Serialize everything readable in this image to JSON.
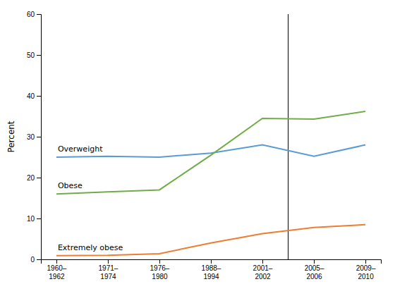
{
  "chart_data": {
    "type": "line",
    "categories": [
      "1960–\n1962",
      "1971–\n1974",
      "1976–\n1980",
      "1988–\n1994",
      "2001–\n2002",
      "2005–\n2006",
      "2009–\n2010"
    ],
    "series": [
      {
        "name": "Overweight",
        "color": "#5b9bd5",
        "values": [
          25.0,
          25.2,
          25.0,
          26.0,
          28.0,
          25.2,
          28.0
        ]
      },
      {
        "name": "Obese",
        "color": "#70ad47",
        "values": [
          16.0,
          16.5,
          17.0,
          25.5,
          34.5,
          34.3,
          36.2
        ]
      },
      {
        "name": "Extremely obese",
        "color": "#ed7d31",
        "values": [
          0.9,
          1.0,
          1.4,
          4.0,
          6.3,
          7.8,
          8.5
        ]
      }
    ],
    "ylabel": "Percent",
    "ylim": [
      0,
      60
    ],
    "yticks": [
      0,
      10,
      20,
      30,
      40,
      50,
      60
    ],
    "separator": {
      "between": [
        "2001–\n2002",
        "2005–\n2006"
      ]
    },
    "grid": false
  }
}
